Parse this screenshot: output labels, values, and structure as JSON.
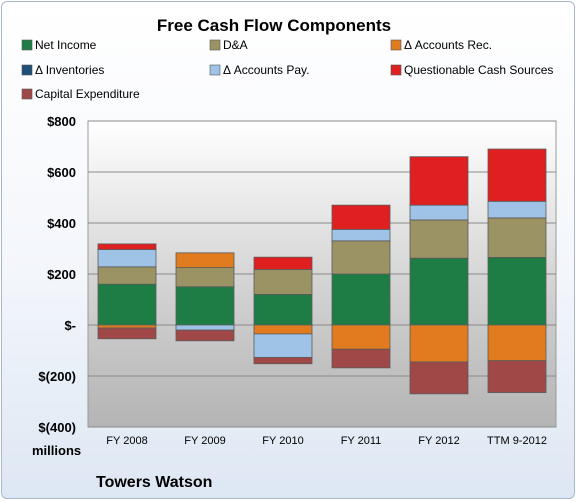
{
  "chart_data": {
    "type": "bar",
    "stacked": true,
    "title": "Free Cash Flow Components",
    "categories": [
      "FY 2008",
      "FY 2009",
      "FY 2010",
      "FY 2011",
      "FY 2012",
      "TTM 9-2012"
    ],
    "ylim": [
      -400,
      800
    ],
    "ytick_values": [
      800,
      600,
      400,
      200,
      0,
      -200,
      -400
    ],
    "ytick_labels": [
      "$800",
      "$600",
      "$400",
      "$200",
      "$-",
      "$(200)",
      "$(400)"
    ],
    "unit_label": "millions",
    "company": "Towers Watson",
    "grid": true,
    "legend_position": "top",
    "series": [
      {
        "name": "Net Income",
        "color": "#1e7d45",
        "values": [
          160,
          150,
          120,
          200,
          262,
          265
        ]
      },
      {
        "name": "D&A",
        "color": "#9b9363",
        "values": [
          68,
          75,
          98,
          130,
          150,
          155
        ]
      },
      {
        "name": "Δ Accounts Rec.",
        "color": "#e07b20",
        "values": [
          -12,
          58,
          -35,
          -95,
          -145,
          -140
        ]
      },
      {
        "name": "Δ Inventories",
        "color": "#1f4e79",
        "values": [
          0,
          0,
          0,
          0,
          0,
          0
        ]
      },
      {
        "name": "Δ Accounts Pay.",
        "color": "#9ec3e6",
        "values": [
          68,
          -20,
          -92,
          45,
          58,
          65
        ]
      },
      {
        "name": "Questionable Cash Sources",
        "color": "#e02020",
        "values": [
          22,
          0,
          48,
          95,
          190,
          205
        ]
      },
      {
        "name": "Capital Expenditure",
        "color": "#a04848",
        "values": [
          -42,
          -42,
          -25,
          -73,
          -125,
          -125
        ]
      }
    ]
  }
}
